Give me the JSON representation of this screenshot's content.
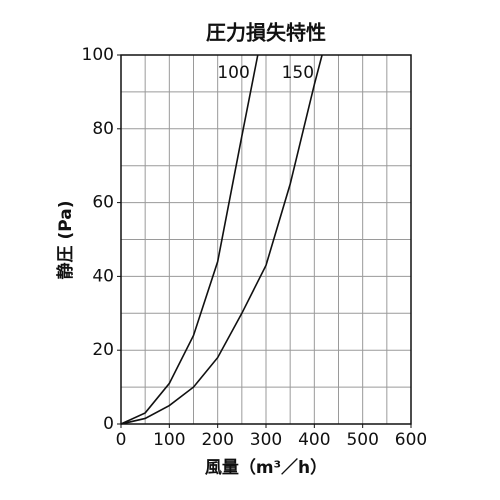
{
  "chart_data": {
    "type": "line",
    "title": "圧力損失特性",
    "xlabel": "風量（m³／h）",
    "ylabel": "静圧 (Pa)",
    "series": [
      {
        "name": "100",
        "color": "#111111",
        "x": [
          0,
          50,
          100,
          150,
          200,
          250,
          283
        ],
        "values": [
          0,
          3,
          11,
          24,
          44,
          78,
          100
        ]
      },
      {
        "name": "150",
        "color": "#111111",
        "x": [
          0,
          50,
          100,
          150,
          200,
          250,
          300,
          350,
          400,
          416
        ],
        "values": [
          0,
          1.5,
          5,
          10,
          18,
          30,
          43,
          65,
          92,
          100
        ]
      }
    ],
    "xlim": [
      0,
      600
    ],
    "ylim": [
      0,
      100
    ],
    "xticks": [
      0,
      100,
      200,
      300,
      400,
      500,
      600
    ],
    "yticks": [
      0,
      20,
      40,
      60,
      80,
      100
    ],
    "x_grid": [
      50,
      100,
      150,
      200,
      250,
      300,
      350,
      400,
      450,
      500,
      550
    ],
    "y_grid": [
      10,
      20,
      30,
      40,
      50,
      60,
      70,
      80,
      90
    ],
    "grid": true
  }
}
